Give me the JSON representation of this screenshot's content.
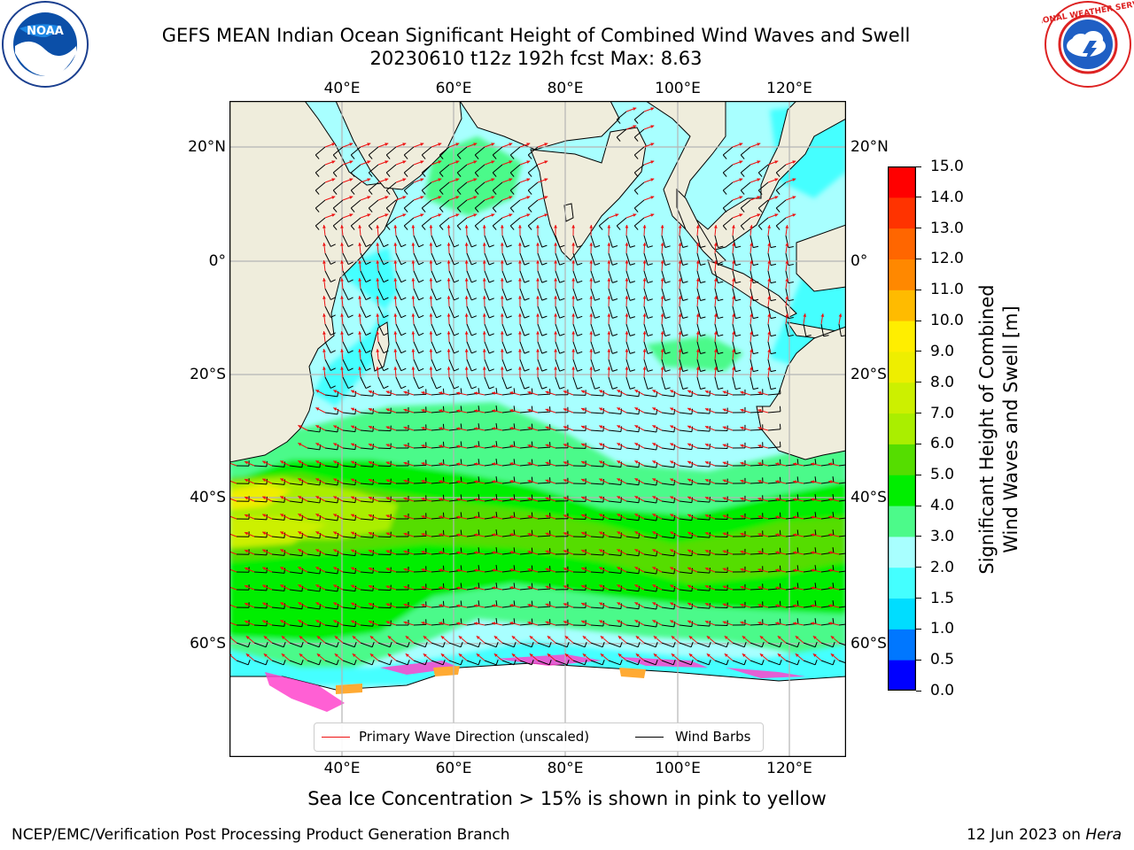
{
  "header": {
    "title_line1": "GEFS MEAN Indian Ocean Significant Height of Combined Wind Waves and Swell",
    "title_line2": "20230610 t12z 192h fcst   Max: 8.63"
  },
  "logos": {
    "left": {
      "icon": "noaa-logo",
      "text": "NOAA"
    },
    "right": {
      "icon": "national-weather-service-logo",
      "text": "NATIONAL WEATHER SERVICE"
    }
  },
  "map": {
    "lon_ticks_top": [
      "40°E",
      "60°E",
      "80°E",
      "100°E",
      "120°E"
    ],
    "lon_ticks_bottom": [
      "40°E",
      "60°E",
      "80°E",
      "100°E",
      "120°E"
    ],
    "lat_ticks_left": [
      "20°N",
      "0°",
      "20°S",
      "40°S",
      "60°S"
    ],
    "lat_ticks_right": [
      "20°N",
      "0°",
      "20°S",
      "40°S",
      "60°S"
    ],
    "colors": {
      "land": "#efeddc",
      "ice": "#ffffff",
      "grid": "#b5b5b5",
      "arrow": "#ee1111",
      "barb": "#000000"
    }
  },
  "colorbar": {
    "label": "Significant Height of Combined Wind Waves and Swell [m]",
    "ticks": [
      "0.0",
      "0.5",
      "1.0",
      "1.5",
      "2.0",
      "3.0",
      "4.0",
      "5.0",
      "6.0",
      "7.0",
      "8.0",
      "9.0",
      "10.0",
      "11.0",
      "12.0",
      "13.0",
      "14.0",
      "15.0"
    ],
    "colors": [
      "#0000ff",
      "#0077ff",
      "#00ddff",
      "#44ffff",
      "#a8ffff",
      "#4cfa8a",
      "#00ee00",
      "#55dd00",
      "#aaee00",
      "#ccf000",
      "#eeee00",
      "#ffee00",
      "#ffbb00",
      "#ff8800",
      "#ff6600",
      "#ff3300",
      "#ff0000"
    ]
  },
  "legend": {
    "wave_label": "Primary Wave Direction (unscaled)",
    "wind_label": "Wind Barbs"
  },
  "caption": "Sea Ice Concentration > 15% is shown in pink to yellow",
  "footer": {
    "left": "NCEP/EMC/Verification Post Processing Product Generation Branch",
    "right_date": "12 Jun 2023 on ",
    "right_host": "Hera"
  }
}
